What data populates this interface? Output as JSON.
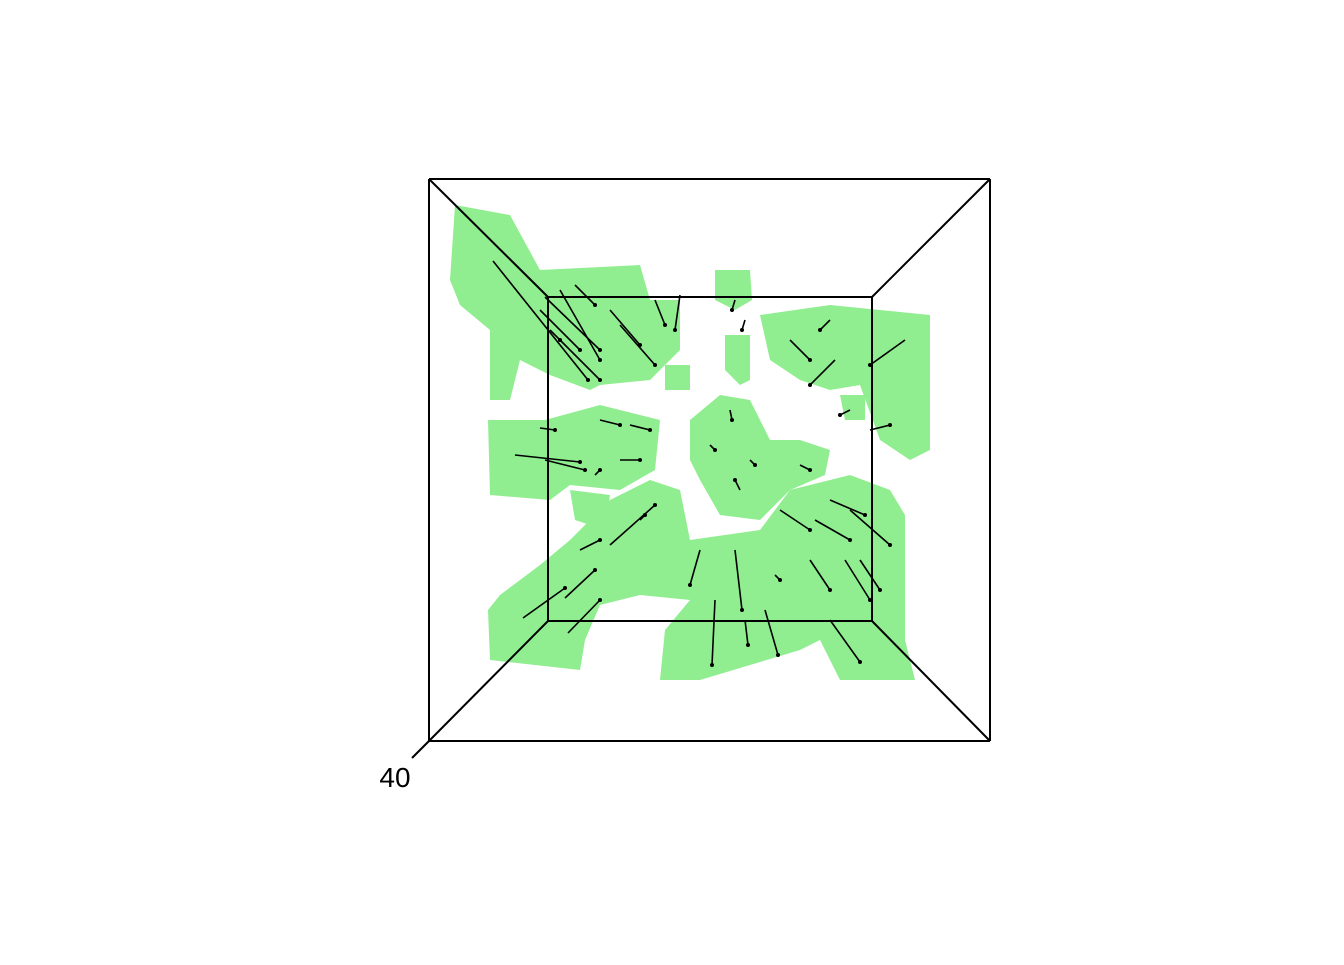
{
  "chart_data": {
    "type": "scatter3d",
    "zticks": [
      40
    ]
  }
}
